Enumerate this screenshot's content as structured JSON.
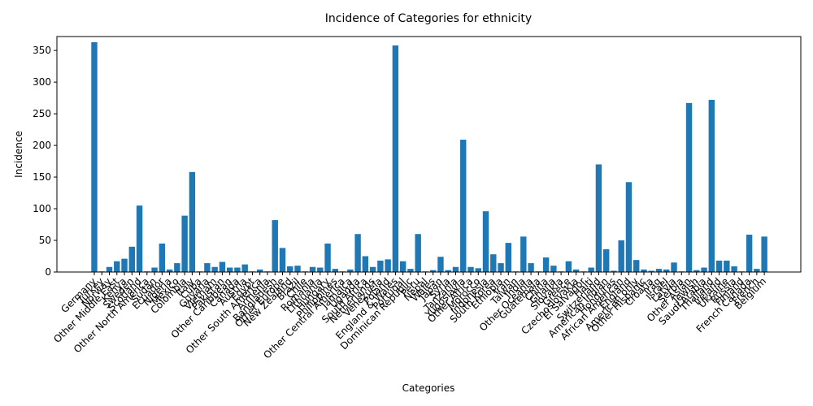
{
  "chart_data": {
    "type": "bar",
    "title": "Incidence of Categories for ethnicity",
    "x_label": "Categories",
    "y_label": "Incidence",
    "categories": [
      "Germany",
      "Turkey",
      "Norway",
      "Other Middle East",
      "Kenya",
      "Sweden",
      "Scotland",
      "Other North America",
      "Sudan",
      "Ecuador",
      "Nigeria",
      "Mexico",
      "Colombia",
      "Italy",
      "Cuba",
      "Guyana",
      "Vietnam",
      "Pakistan",
      "Other Caribbean",
      "Canada",
      "Austria",
      "Egypt",
      "Other South America",
      "Armenia",
      "Bangladesh",
      "Other Europe",
      "New Zealand",
      "Brazil",
      "Chile",
      "Romania",
      "Lithuania",
      "Hungary",
      "Philippines",
      "Other Central America",
      "Jamaica",
      "Uganda",
      "South Africa",
      "Netherlands",
      "Venezuela",
      "Poland",
      "England & Wales",
      "Portugal",
      "Dominican Republic",
      "Peru",
      "Nepal",
      "Wales",
      "Japan",
      "Syria",
      "Tanzania",
      "Yugoslavia",
      "Other Africa",
      "Morocco",
      "Indonesia",
      "South Korea",
      "Ethiopia",
      "Iran",
      "Taiwan",
      "India",
      "Other Oceania",
      "Guatemala",
      "China",
      "Ghana",
      "Slovakia",
      "Greece",
      "Czechoslovakia",
      "El Salvador",
      "Haiti",
      "Switzerland",
      "American Indian",
      "Honduras",
      "African American",
      "England",
      "American only",
      "Other Hispanic",
      "Croatia",
      "Iraq",
      "Israel",
      "Latvia",
      "Serbia",
      "Other Asian",
      "Jewish",
      "Saudi Arabia",
      "Thailand",
      "Ireland",
      "Ukraine",
      "Russia",
      "Finland",
      "French Canada",
      "French",
      "Belgium"
    ],
    "values": [
      363,
      1,
      8,
      17,
      21,
      40,
      105,
      1,
      7,
      45,
      4,
      14,
      89,
      158,
      1,
      14,
      8,
      16,
      7,
      7,
      12,
      1,
      4,
      1,
      82,
      38,
      9,
      10,
      1,
      8,
      7,
      45,
      5,
      1,
      4,
      60,
      25,
      8,
      18,
      20,
      358,
      17,
      5,
      60,
      1,
      3,
      24,
      3,
      8,
      209,
      8,
      6,
      96,
      28,
      14,
      46,
      1,
      56,
      14,
      1,
      23,
      10,
      1,
      17,
      4,
      1,
      7,
      170,
      36,
      2,
      50,
      142,
      19,
      4,
      2,
      5,
      4,
      15,
      1,
      267,
      3,
      7,
      272,
      18,
      18,
      9,
      1,
      59,
      5,
      56
    ],
    "color": "#1f77b4",
    "ylim": [
      0,
      372
    ],
    "yticks": [
      0,
      50,
      100,
      150,
      200,
      250,
      300,
      350
    ]
  }
}
